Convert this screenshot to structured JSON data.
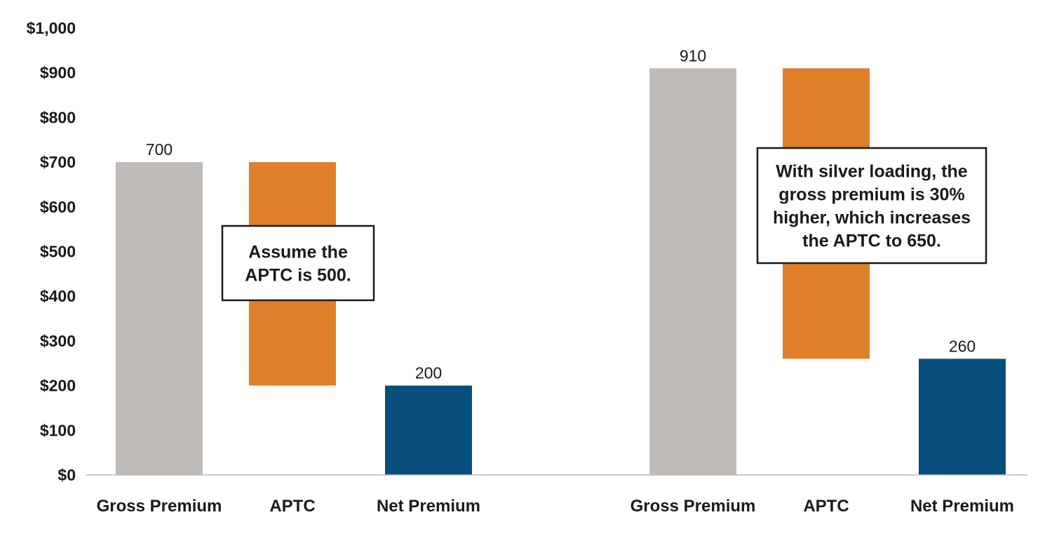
{
  "chart_data": {
    "type": "bar",
    "subtype": "waterfall",
    "ylim": [
      0,
      1000
    ],
    "yticks": [
      0,
      100,
      200,
      300,
      400,
      500,
      600,
      700,
      800,
      900,
      1000
    ],
    "ytick_labels": [
      "$0",
      "$100",
      "$200",
      "$300",
      "$400",
      "$500",
      "$600",
      "$700",
      "$800",
      "$900",
      "$1,000"
    ],
    "grid": false,
    "colors": {
      "gross": "#bfbbb9",
      "aptc": "#e07f29",
      "net": "#064f7c"
    },
    "groups": [
      {
        "bars": [
          {
            "category": "Gross Premium",
            "kind": "gross",
            "bottom": 0,
            "top": 700,
            "label": "700"
          },
          {
            "category": "APTC",
            "kind": "aptc",
            "bottom": 200,
            "top": 700,
            "label": ""
          },
          {
            "category": "Net Premium",
            "kind": "net",
            "bottom": 0,
            "top": 200,
            "label": "200"
          }
        ],
        "callout": [
          "Assume the",
          "APTC is 500."
        ]
      },
      {
        "bars": [
          {
            "category": "Gross Premium",
            "kind": "gross",
            "bottom": 0,
            "top": 910,
            "label": "910"
          },
          {
            "category": "APTC",
            "kind": "aptc",
            "bottom": 260,
            "top": 910,
            "label": ""
          },
          {
            "category": "Net Premium",
            "kind": "net",
            "bottom": 0,
            "top": 260,
            "label": "260"
          }
        ],
        "callout": [
          "With silver loading, the",
          "gross premium is 30%",
          "higher, which increases",
          "the APTC to 650."
        ]
      }
    ]
  }
}
